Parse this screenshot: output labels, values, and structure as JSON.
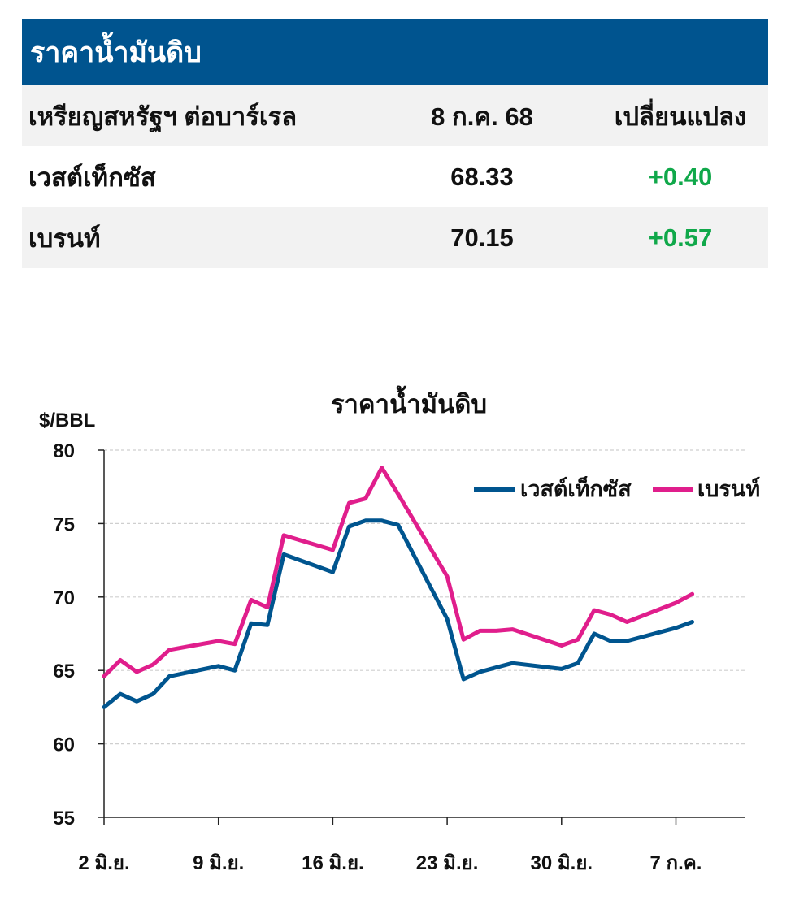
{
  "table": {
    "title": "ราคาน้ำมันดิบ",
    "header": {
      "label": "เหรียญสหรัฐฯ ต่อบาร์เรล",
      "date": "8 ก.ค. 68",
      "change": "เปลี่ยนแปลง"
    },
    "rows": [
      {
        "name": "เวสต์เท็กซัส",
        "price": "68.33",
        "change": "+0.40"
      },
      {
        "name": "เบรนท์",
        "price": "70.15",
        "change": "+0.57"
      }
    ]
  },
  "colors": {
    "header_bg": "#00548f",
    "wti": "#00558f",
    "brent": "#e01e8c",
    "positive": "#10a84a"
  },
  "chart_data": {
    "type": "line",
    "title": "ราคาน้ำมันดิบ",
    "ylabel": "$/BBL",
    "ylim": [
      55,
      80
    ],
    "yticks": [
      55,
      60,
      65,
      70,
      75,
      80
    ],
    "grid": true,
    "legend_position": "top-right",
    "xtick_labels": [
      "2 มิ.ย.",
      "9 มิ.ย.",
      "16 มิ.ย.",
      "23 มิ.ย.",
      "30 มิ.ย.",
      "7 ก.ค."
    ],
    "x": [
      "2025-06-02",
      "2025-06-03",
      "2025-06-04",
      "2025-06-05",
      "2025-06-06",
      "2025-06-09",
      "2025-06-10",
      "2025-06-11",
      "2025-06-12",
      "2025-06-13",
      "2025-06-16",
      "2025-06-17",
      "2025-06-18",
      "2025-06-19",
      "2025-06-20",
      "2025-06-23",
      "2025-06-24",
      "2025-06-25",
      "2025-06-26",
      "2025-06-27",
      "2025-06-30",
      "2025-07-01",
      "2025-07-02",
      "2025-07-03",
      "2025-07-04",
      "2025-07-07",
      "2025-07-08"
    ],
    "series": [
      {
        "name": "เวสต์เท็กซัส",
        "color": "#00558f",
        "values": [
          62.5,
          63.4,
          62.9,
          63.4,
          64.6,
          65.3,
          65.0,
          68.2,
          68.1,
          72.9,
          71.7,
          74.8,
          75.2,
          75.2,
          74.9,
          68.5,
          64.4,
          64.9,
          65.2,
          65.5,
          65.1,
          65.5,
          67.5,
          67.0,
          67.0,
          67.9,
          68.3
        ]
      },
      {
        "name": "เบรนท์",
        "color": "#e01e8c",
        "values": [
          64.6,
          65.7,
          64.9,
          65.4,
          66.4,
          67.0,
          66.8,
          69.8,
          69.3,
          74.2,
          73.2,
          76.4,
          76.7,
          78.8,
          77.0,
          71.4,
          67.1,
          67.7,
          67.7,
          67.8,
          66.7,
          67.1,
          69.1,
          68.8,
          68.3,
          69.6,
          70.2
        ]
      }
    ]
  }
}
